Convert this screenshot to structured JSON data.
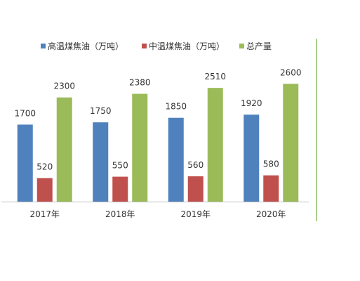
{
  "chart_data": {
    "type": "bar",
    "categories": [
      "2017年",
      "2018年",
      "2019年",
      "2020年"
    ],
    "series": [
      {
        "name": "高温煤焦油（万吨）",
        "color": "#4f81bd",
        "values": [
          1700,
          1750,
          1850,
          1920
        ]
      },
      {
        "name": "中温煤焦油（万吨）",
        "color": "#c0504d",
        "values": [
          520,
          550,
          560,
          580
        ]
      },
      {
        "name": "总产量",
        "color": "#9bbb59",
        "values": [
          2300,
          2380,
          2510,
          2600
        ]
      }
    ],
    "ylim": [
      0,
      2900
    ],
    "grid": false,
    "legend_position": "top",
    "axis_color": "#bfbfbf",
    "border_color": "#a8d08d"
  }
}
